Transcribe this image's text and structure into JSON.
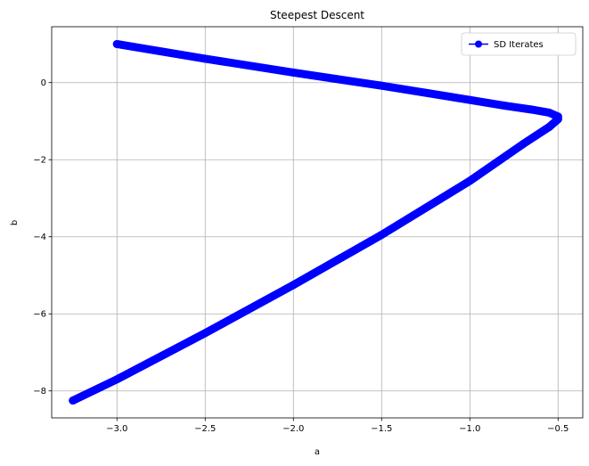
{
  "chart_data": {
    "type": "line",
    "title": "Steepest Descent",
    "xlabel": "a",
    "ylabel": "b",
    "xlim": [
      -3.37,
      -0.36
    ],
    "ylim": [
      -8.7,
      1.45
    ],
    "xticks": [
      -3.0,
      -2.5,
      -2.0,
      -1.5,
      -1.0,
      -0.5
    ],
    "xtick_labels": [
      "−3.0",
      "−2.5",
      "−2.0",
      "−1.5",
      "−1.0",
      "−0.5"
    ],
    "yticks": [
      -8,
      -6,
      -4,
      -2,
      0
    ],
    "ytick_labels": [
      "−8",
      "−6",
      "−4",
      "−2",
      "0"
    ],
    "grid": true,
    "legend_position": "top-right",
    "series": [
      {
        "name": "SD Iterates",
        "color": "#0000ff",
        "marker": "circle",
        "x": [
          -3.0,
          -2.5,
          -2.0,
          -1.5,
          -1.0,
          -0.8,
          -0.65,
          -0.55,
          -0.5,
          -0.5,
          -0.55,
          -0.7,
          -1.0,
          -1.5,
          -2.0,
          -2.5,
          -3.0,
          -3.25
        ],
        "y": [
          1.0,
          0.62,
          0.26,
          -0.08,
          -0.45,
          -0.6,
          -0.7,
          -0.78,
          -0.88,
          -0.95,
          -1.15,
          -1.6,
          -2.55,
          -3.95,
          -5.25,
          -6.5,
          -7.7,
          -8.25
        ]
      }
    ]
  }
}
